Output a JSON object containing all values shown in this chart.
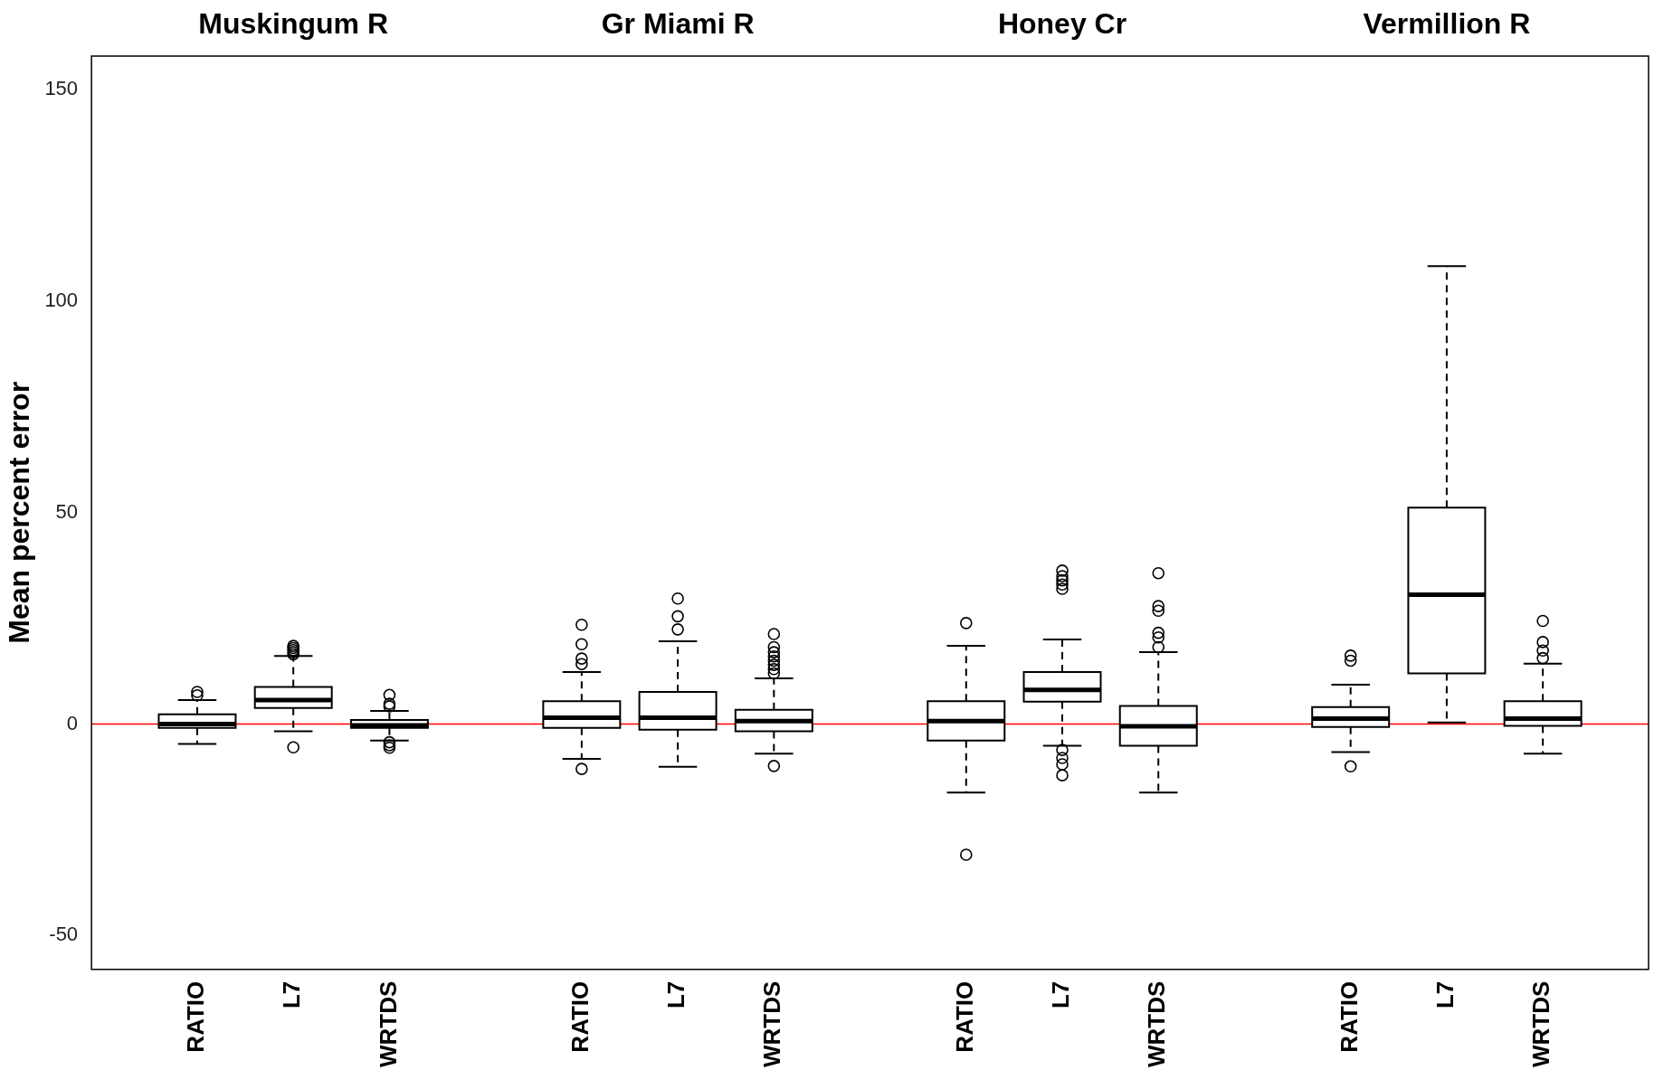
{
  "chart_data": {
    "type": "box",
    "ylabel": "Mean percent error",
    "annotations": [
      "Muskingum R",
      "Gr Miami R",
      "Honey Cr",
      "Vermillion R"
    ],
    "categories": [
      "RATIO",
      "L7",
      "WRTDS",
      null,
      "RATIO",
      "L7",
      "WRTDS",
      null,
      "RATIO",
      "L7",
      "WRTDS",
      null,
      "RATIO",
      "L7",
      "WRTDS"
    ],
    "boxes": [
      {
        "low": -4.7,
        "q1": -0.9,
        "median": 0,
        "q3": 2.3,
        "high": 5.7,
        "outliers": [
          6.8,
          7.6
        ]
      },
      {
        "low": -1.7,
        "q1": 3.8,
        "median": 5.7,
        "q3": 8.8,
        "high": 16.1,
        "outliers": [
          16.5,
          17,
          17.5,
          18,
          18.5,
          -5.5
        ]
      },
      {
        "low": -3.9,
        "q1": -0.9,
        "median": -0.3,
        "q3": 1.0,
        "high": 3.1,
        "outliers": [
          4.2,
          4.8,
          6.9,
          -4.3,
          -5.0,
          -5.6
        ]
      },
      null,
      {
        "low": -8.2,
        "q1": -0.9,
        "median": 1.5,
        "q3": 5.4,
        "high": 12.3,
        "outliers": [
          14.2,
          15.5,
          18.9,
          23.5,
          -10.6
        ]
      },
      {
        "low": -10.1,
        "q1": -1.3,
        "median": 1.5,
        "q3": 7.6,
        "high": 19.6,
        "outliers": [
          22.4,
          25.5,
          29.7
        ]
      },
      {
        "low": -7.0,
        "q1": -1.7,
        "median": 0.7,
        "q3": 3.4,
        "high": 10.8,
        "outliers": [
          12,
          13,
          14,
          15,
          16,
          17,
          18.2,
          21.3,
          -9.9
        ]
      },
      null,
      {
        "low": -16.2,
        "q1": -3.9,
        "median": 0.7,
        "q3": 5.4,
        "high": 18.5,
        "outliers": [
          23.9,
          -30.9
        ]
      },
      {
        "low": -5.1,
        "q1": 5.3,
        "median": 8.1,
        "q3": 12.3,
        "high": 20.0,
        "outliers": [
          32,
          33,
          34,
          35,
          36.3,
          -6.1,
          -8,
          -9.5,
          -12.1
        ]
      },
      {
        "low": -16.2,
        "q1": -5.1,
        "median": -0.5,
        "q3": 4.3,
        "high": 17.0,
        "outliers": [
          18.2,
          20.5,
          21.6,
          26.8,
          27.9,
          35.7
        ]
      },
      null,
      {
        "low": -6.6,
        "q1": -0.7,
        "median": 1.3,
        "q3": 4.0,
        "high": 9.3,
        "outliers": [
          15.0,
          16.2,
          -10.0
        ]
      },
      {
        "low": 0.4,
        "q1": 12.0,
        "median": 30.6,
        "q3": 51.2,
        "high": 108.3
      },
      {
        "low": -7.0,
        "q1": -0.4,
        "median": 1.3,
        "q3": 5.4,
        "high": 14.3,
        "outliers": [
          15.6,
          17.4,
          19.4,
          24.4
        ]
      }
    ],
    "ylim": [
      -58,
      158
    ],
    "yticks": [
      -50,
      0,
      50,
      100,
      150
    ],
    "grid": false,
    "ref_lines": [
      {
        "axis": "y",
        "value": 0,
        "color": "#ff0000"
      }
    ]
  }
}
